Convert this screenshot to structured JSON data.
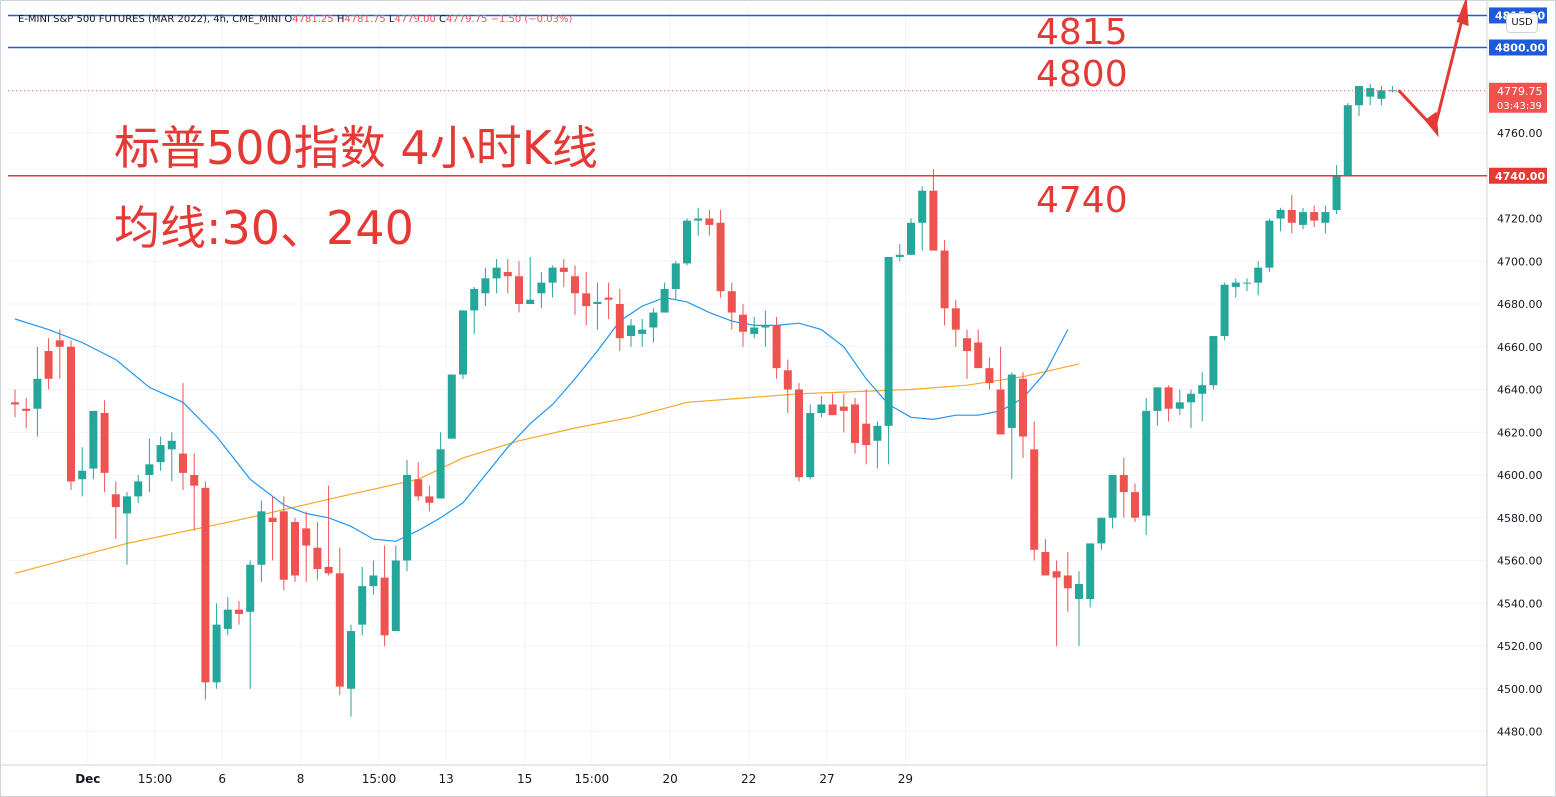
{
  "header": {
    "symbol": "E-MINI S&P 500 FUTURES (MAR 2022), 4h, CME_MINI",
    "o_label": "O",
    "o": "4781.25",
    "h_label": "H",
    "h": "4781.75",
    "l_label": "L",
    "l": "4779.00",
    "c_label": "C",
    "c": "4779.75",
    "change": "−1.50 (−0.03%)"
  },
  "currency": "USD",
  "annotations": {
    "title": "标普500指数 4小时K线",
    "subtitle": "均线:30、240",
    "level_4815": "4815",
    "level_4800": "4800",
    "level_4740": "4740"
  },
  "price_labels": {
    "top_line": "4815.00",
    "line_4800": "4800.00",
    "line_4740": "4740.00",
    "last_price": "4779.75",
    "countdown": "03:43:39"
  },
  "colors": {
    "up": "#26a69a",
    "down": "#ef5350",
    "ma30": "#2196f3",
    "ma240": "#f9a825",
    "hline_blue": "#1e5bd8",
    "hline_red": "#e53935",
    "annotation": "#e53935"
  },
  "chart_data": {
    "type": "candlestick",
    "ylim": [
      4470,
      4830
    ],
    "y_ticks": [
      4480,
      4500,
      4520,
      4540,
      4560,
      4580,
      4600,
      4620,
      4640,
      4660,
      4680,
      4700,
      4720,
      4740,
      4760,
      4780,
      4800
    ],
    "x_labels": [
      "Dec",
      "15:00",
      "6",
      "8",
      "15:00",
      "13",
      "15",
      "15:00",
      "20",
      "22",
      "27",
      "29"
    ],
    "x_label_bars": [
      6.5,
      12.5,
      18.5,
      25.5,
      32.5,
      38.5,
      45.5,
      51.5,
      58.5,
      65.5,
      72.5,
      79.5
    ],
    "bar_count": 100,
    "candles": [
      {
        "o": 4634,
        "h": 4640,
        "l": 4627,
        "c": 4633
      },
      {
        "o": 4631,
        "h": 4636,
        "l": 4622,
        "c": 4630
      },
      {
        "o": 4631,
        "h": 4660,
        "l": 4618,
        "c": 4645
      },
      {
        "o": 4658,
        "h": 4664,
        "l": 4640,
        "c": 4645
      },
      {
        "o": 4663,
        "h": 4668,
        "l": 4645,
        "c": 4660
      },
      {
        "o": 4660,
        "h": 4663,
        "l": 4593,
        "c": 4597
      },
      {
        "o": 4598,
        "h": 4613,
        "l": 4590,
        "c": 4602
      },
      {
        "o": 4603,
        "h": 4627,
        "l": 4598,
        "c": 4630
      },
      {
        "o": 4629,
        "h": 4635,
        "l": 4592,
        "c": 4601
      },
      {
        "o": 4591,
        "h": 4597,
        "l": 4570,
        "c": 4585
      },
      {
        "o": 4582,
        "h": 4592,
        "l": 4558,
        "c": 4590
      },
      {
        "o": 4590,
        "h": 4600,
        "l": 4587,
        "c": 4597
      },
      {
        "o": 4600,
        "h": 4617,
        "l": 4592,
        "c": 4605
      },
      {
        "o": 4606,
        "h": 4618,
        "l": 4602,
        "c": 4614
      },
      {
        "o": 4612,
        "h": 4620,
        "l": 4597,
        "c": 4616
      },
      {
        "o": 4610,
        "h": 4643,
        "l": 4593,
        "c": 4601
      },
      {
        "o": 4600,
        "h": 4610,
        "l": 4574,
        "c": 4595
      },
      {
        "o": 4594,
        "h": 4597,
        "l": 4495,
        "c": 4503
      },
      {
        "o": 4503,
        "h": 4540,
        "l": 4500,
        "c": 4530
      },
      {
        "o": 4528,
        "h": 4543,
        "l": 4525,
        "c": 4537
      },
      {
        "o": 4537,
        "h": 4541,
        "l": 4530,
        "c": 4535
      },
      {
        "o": 4536,
        "h": 4560,
        "l": 4500,
        "c": 4558
      },
      {
        "o": 4558,
        "h": 4588,
        "l": 4550,
        "c": 4583
      },
      {
        "o": 4580,
        "h": 4590,
        "l": 4560,
        "c": 4578
      },
      {
        "o": 4583,
        "h": 4590,
        "l": 4546,
        "c": 4551
      },
      {
        "o": 4578,
        "h": 4580,
        "l": 4550,
        "c": 4553
      },
      {
        "o": 4575,
        "h": 4583,
        "l": 4550,
        "c": 4567
      },
      {
        "o": 4566,
        "h": 4578,
        "l": 4551,
        "c": 4556
      },
      {
        "o": 4557,
        "h": 4595,
        "l": 4553,
        "c": 4554
      },
      {
        "o": 4554,
        "h": 4566,
        "l": 4497,
        "c": 4501
      },
      {
        "o": 4500,
        "h": 4530,
        "l": 4487,
        "c": 4527
      },
      {
        "o": 4530,
        "h": 4557,
        "l": 4525,
        "c": 4548
      },
      {
        "o": 4548,
        "h": 4560,
        "l": 4544,
        "c": 4553
      },
      {
        "o": 4552,
        "h": 4567,
        "l": 4520,
        "c": 4525
      },
      {
        "o": 4527,
        "h": 4567,
        "l": 4527,
        "c": 4560
      },
      {
        "o": 4560,
        "h": 4607,
        "l": 4555,
        "c": 4600
      },
      {
        "o": 4598,
        "h": 4606,
        "l": 4588,
        "c": 4590
      },
      {
        "o": 4590,
        "h": 4595,
        "l": 4583,
        "c": 4587
      },
      {
        "o": 4589,
        "h": 4620,
        "l": 4589,
        "c": 4612
      },
      {
        "o": 4617,
        "h": 4647,
        "l": 4617,
        "c": 4647
      },
      {
        "o": 4647,
        "h": 4677,
        "l": 4645,
        "c": 4677
      },
      {
        "o": 4677,
        "h": 4688,
        "l": 4666,
        "c": 4687
      },
      {
        "o": 4685,
        "h": 4697,
        "l": 4679,
        "c": 4692
      },
      {
        "o": 4692,
        "h": 4701,
        "l": 4685,
        "c": 4697
      },
      {
        "o": 4695,
        "h": 4701,
        "l": 4685,
        "c": 4693
      },
      {
        "o": 4693,
        "h": 4700,
        "l": 4676,
        "c": 4680
      },
      {
        "o": 4680,
        "h": 4702,
        "l": 4680,
        "c": 4682
      },
      {
        "o": 4685,
        "h": 4695,
        "l": 4678,
        "c": 4690
      },
      {
        "o": 4690,
        "h": 4698,
        "l": 4683,
        "c": 4697
      },
      {
        "o": 4697,
        "h": 4701,
        "l": 4688,
        "c": 4695
      },
      {
        "o": 4693,
        "h": 4698,
        "l": 4675,
        "c": 4685
      },
      {
        "o": 4685,
        "h": 4695,
        "l": 4670,
        "c": 4679
      },
      {
        "o": 4680,
        "h": 4690,
        "l": 4668,
        "c": 4681
      },
      {
        "o": 4683,
        "h": 4690,
        "l": 4673,
        "c": 4682
      },
      {
        "o": 4680,
        "h": 4687,
        "l": 4658,
        "c": 4664
      },
      {
        "o": 4665,
        "h": 4673,
        "l": 4660,
        "c": 4670
      },
      {
        "o": 4666,
        "h": 4673,
        "l": 4660,
        "c": 4668
      },
      {
        "o": 4669,
        "h": 4678,
        "l": 4662,
        "c": 4676
      },
      {
        "o": 4676,
        "h": 4690,
        "l": 4676,
        "c": 4687
      },
      {
        "o": 4687,
        "h": 4700,
        "l": 4682,
        "c": 4699
      },
      {
        "o": 4699,
        "h": 4720,
        "l": 4698,
        "c": 4719
      },
      {
        "o": 4719,
        "h": 4725,
        "l": 4712,
        "c": 4720
      },
      {
        "o": 4720,
        "h": 4724,
        "l": 4712,
        "c": 4717
      },
      {
        "o": 4718,
        "h": 4724,
        "l": 4683,
        "c": 4686
      },
      {
        "o": 4686,
        "h": 4690,
        "l": 4668,
        "c": 4676
      },
      {
        "o": 4675,
        "h": 4680,
        "l": 4660,
        "c": 4667
      },
      {
        "o": 4666,
        "h": 4674,
        "l": 4664,
        "c": 4669
      },
      {
        "o": 4669,
        "h": 4677,
        "l": 4660,
        "c": 4670
      },
      {
        "o": 4670,
        "h": 4674,
        "l": 4645,
        "c": 4650
      },
      {
        "o": 4649,
        "h": 4654,
        "l": 4629,
        "c": 4640
      },
      {
        "o": 4640,
        "h": 4643,
        "l": 4597,
        "c": 4599
      },
      {
        "o": 4599,
        "h": 4633,
        "l": 4598,
        "c": 4629
      },
      {
        "o": 4629,
        "h": 4637,
        "l": 4627,
        "c": 4633
      },
      {
        "o": 4633,
        "h": 4638,
        "l": 4628,
        "c": 4628
      },
      {
        "o": 4632,
        "h": 4638,
        "l": 4620,
        "c": 4630
      },
      {
        "o": 4633,
        "h": 4636,
        "l": 4610,
        "c": 4615
      },
      {
        "o": 4624,
        "h": 4640,
        "l": 4605,
        "c": 4614
      },
      {
        "o": 4616,
        "h": 4625,
        "l": 4603,
        "c": 4623
      },
      {
        "o": 4623,
        "h": 4702,
        "l": 4605,
        "c": 4702
      },
      {
        "o": 4702,
        "h": 4708,
        "l": 4700,
        "c": 4703
      },
      {
        "o": 4703,
        "h": 4720,
        "l": 4703,
        "c": 4718
      },
      {
        "o": 4718,
        "h": 4735,
        "l": 4705,
        "c": 4733
      },
      {
        "o": 4733,
        "h": 4743,
        "l": 4705,
        "c": 4705
      },
      {
        "o": 4705,
        "h": 4710,
        "l": 4670,
        "c": 4678
      },
      {
        "o": 4678,
        "h": 4682,
        "l": 4660,
        "c": 4668
      },
      {
        "o": 4664,
        "h": 4668,
        "l": 4645,
        "c": 4658
      },
      {
        "o": 4662,
        "h": 4668,
        "l": 4650,
        "c": 4650
      },
      {
        "o": 4650,
        "h": 4655,
        "l": 4640,
        "c": 4643
      },
      {
        "o": 4640,
        "h": 4660,
        "l": 4622,
        "c": 4619
      },
      {
        "o": 4622,
        "h": 4648,
        "l": 4598,
        "c": 4647
      },
      {
        "o": 4645,
        "h": 4648,
        "l": 4608,
        "c": 4618
      },
      {
        "o": 4612,
        "h": 4625,
        "l": 4560,
        "c": 4565
      },
      {
        "o": 4564,
        "h": 4570,
        "l": 4555,
        "c": 4553
      },
      {
        "o": 4555,
        "h": 4560,
        "l": 4520,
        "c": 4552
      },
      {
        "o": 4553,
        "h": 4564,
        "l": 4536,
        "c": 4547
      },
      {
        "o": 4542,
        "h": 4555,
        "l": 4520,
        "c": 4549
      },
      {
        "o": 4542,
        "h": 4568,
        "l": 4538,
        "c": 4568
      },
      {
        "o": 4568,
        "h": 4580,
        "l": 4565,
        "c": 4580
      },
      {
        "o": 4580,
        "h": 4600,
        "l": 4575,
        "c": 4600
      },
      {
        "o": 4600,
        "h": 4608,
        "l": 4580,
        "c": 4592
      }
    ],
    "candles_tail": [
      {
        "o": 4592,
        "h": 4596,
        "l": 4578,
        "c": 4580
      },
      {
        "o": 4581,
        "h": 4636,
        "l": 4572,
        "c": 4630
      },
      {
        "o": 4630,
        "h": 4641,
        "l": 4623,
        "c": 4641
      },
      {
        "o": 4641,
        "h": 4642,
        "l": 4625,
        "c": 4631
      },
      {
        "o": 4631,
        "h": 4640,
        "l": 4628,
        "c": 4634
      },
      {
        "o": 4634,
        "h": 4640,
        "l": 4622,
        "c": 4638
      },
      {
        "o": 4638,
        "h": 4648,
        "l": 4625,
        "c": 4642
      },
      {
        "o": 4642,
        "h": 4665,
        "l": 4640,
        "c": 4665
      },
      {
        "o": 4665,
        "h": 4690,
        "l": 4663,
        "c": 4689
      },
      {
        "o": 4688,
        "h": 4692,
        "l": 4683,
        "c": 4690
      },
      {
        "o": 4690,
        "h": 4692,
        "l": 4686,
        "c": 4690
      },
      {
        "o": 4690,
        "h": 4700,
        "l": 4684,
        "c": 4697
      },
      {
        "o": 4697,
        "h": 4720,
        "l": 4695,
        "c": 4719
      },
      {
        "o": 4720,
        "h": 4725,
        "l": 4714,
        "c": 4724
      },
      {
        "o": 4724,
        "h": 4731,
        "l": 4713,
        "c": 4718
      },
      {
        "o": 4717,
        "h": 4725,
        "l": 4715,
        "c": 4723
      },
      {
        "o": 4723,
        "h": 4726,
        "l": 4716,
        "c": 4719
      },
      {
        "o": 4718,
        "h": 4726,
        "l": 4713,
        "c": 4723
      },
      {
        "o": 4724,
        "h": 4745,
        "l": 4722,
        "c": 4740
      },
      {
        "o": 4740,
        "h": 4774,
        "l": 4740,
        "c": 4773
      },
      {
        "o": 4773,
        "h": 4782,
        "l": 4768,
        "c": 4782
      },
      {
        "o": 4777,
        "h": 4783,
        "l": 4773,
        "c": 4781
      },
      {
        "o": 4776,
        "h": 4782,
        "l": 4773,
        "c": 4780
      },
      {
        "o": 4780,
        "h": 4782,
        "l": 4779,
        "c": 4780
      }
    ],
    "ma30": [
      [
        0,
        4673
      ],
      [
        3,
        4668
      ],
      [
        6,
        4662
      ],
      [
        9,
        4654
      ],
      [
        12,
        4641
      ],
      [
        15,
        4634
      ],
      [
        18,
        4618
      ],
      [
        21,
        4598
      ],
      [
        24,
        4586
      ],
      [
        26,
        4582
      ],
      [
        28,
        4580
      ],
      [
        30,
        4576
      ],
      [
        32,
        4570
      ],
      [
        34,
        4569
      ],
      [
        36,
        4574
      ],
      [
        38,
        4580
      ],
      [
        40,
        4587
      ],
      [
        42,
        4600
      ],
      [
        44,
        4613
      ],
      [
        46,
        4624
      ],
      [
        48,
        4633
      ],
      [
        50,
        4645
      ],
      [
        52,
        4658
      ],
      [
        54,
        4672
      ],
      [
        56,
        4679
      ],
      [
        58,
        4683
      ],
      [
        60,
        4681
      ],
      [
        62,
        4676
      ],
      [
        64,
        4672
      ],
      [
        66,
        4670
      ],
      [
        68,
        4670
      ],
      [
        70,
        4671
      ],
      [
        72,
        4668
      ],
      [
        74,
        4660
      ],
      [
        76,
        4645
      ],
      [
        78,
        4633
      ],
      [
        80,
        4627
      ],
      [
        82,
        4626
      ],
      [
        84,
        4628
      ],
      [
        86,
        4628
      ],
      [
        88,
        4630
      ],
      [
        90,
        4636
      ],
      [
        92,
        4648
      ],
      [
        94,
        4668
      ]
    ],
    "ma240": [
      [
        0,
        4554
      ],
      [
        10,
        4568
      ],
      [
        20,
        4579
      ],
      [
        30,
        4591
      ],
      [
        36,
        4598
      ],
      [
        40,
        4608
      ],
      [
        45,
        4616
      ],
      [
        50,
        4622
      ],
      [
        55,
        4627
      ],
      [
        60,
        4634
      ],
      [
        65,
        4636
      ],
      [
        70,
        4638
      ],
      [
        75,
        4639
      ],
      [
        80,
        4640
      ],
      [
        85,
        4642
      ],
      [
        90,
        4646
      ],
      [
        95,
        4652
      ]
    ],
    "hlines": [
      4815,
      4800,
      4740
    ],
    "last_price": 4779.75
  }
}
